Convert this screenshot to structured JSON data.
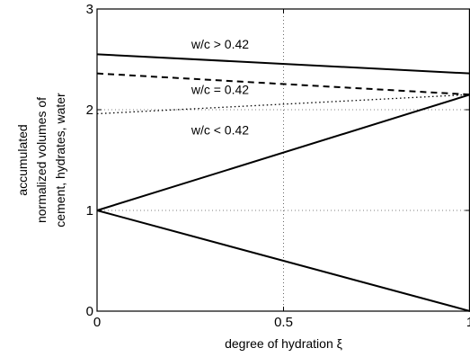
{
  "chart_data": {
    "type": "line",
    "title": "",
    "xlabel": "degree of hydration ξ",
    "ylabel_lines": [
      "accumulated",
      "normalized volumes of",
      "cement, hydrates, water"
    ],
    "xlim": [
      0,
      1
    ],
    "ylim": [
      0,
      3
    ],
    "xticks": [
      0,
      0.5,
      1
    ],
    "xtick_labels": [
      "0",
      "0.5",
      "1"
    ],
    "yticks": [
      0,
      1,
      2,
      3
    ],
    "ytick_labels": [
      "0",
      "1",
      "2",
      "3"
    ],
    "grid": "dotted",
    "series": [
      {
        "name": "",
        "style": "solid",
        "x": [
          0,
          1
        ],
        "y": [
          2.55,
          2.36
        ]
      },
      {
        "name": "",
        "style": "dashed",
        "x": [
          0,
          1
        ],
        "y": [
          2.36,
          2.15
        ]
      },
      {
        "name": "",
        "style": "dotted",
        "x": [
          0,
          1
        ],
        "y": [
          1.96,
          2.15
        ]
      },
      {
        "name": "",
        "style": "solid",
        "x": [
          0,
          1
        ],
        "y": [
          1.0,
          2.15
        ]
      },
      {
        "name": "",
        "style": "solid",
        "x": [
          0,
          1
        ],
        "y": [
          1.0,
          0.0
        ]
      }
    ],
    "annotations": [
      {
        "text": "w/c > 0.42",
        "x": 0.33,
        "y": 2.65
      },
      {
        "text": "w/c = 0.42",
        "x": 0.33,
        "y": 2.2
      },
      {
        "text": "w/c < 0.42",
        "x": 0.33,
        "y": 1.8
      }
    ],
    "colors": {
      "line": "#000000",
      "grid": "#000000",
      "background": "#ffffff"
    }
  }
}
